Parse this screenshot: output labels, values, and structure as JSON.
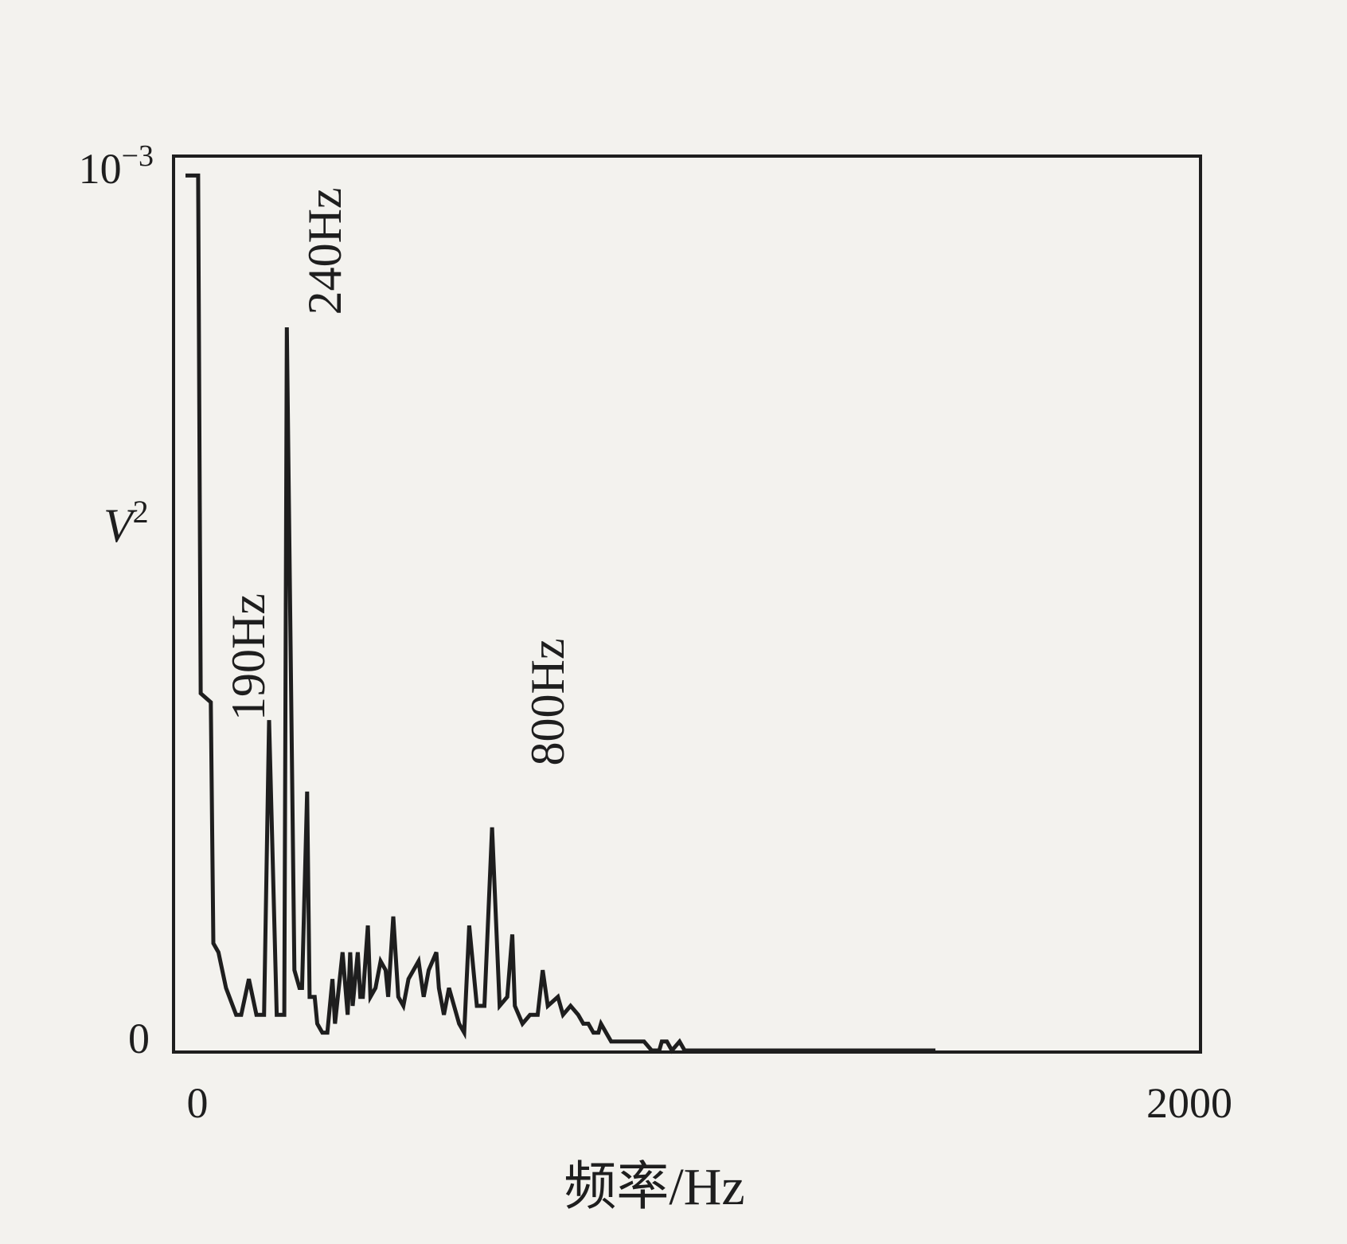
{
  "chart_data": {
    "type": "line",
    "xlabel": "频率/Hz",
    "ylabel": "V",
    "ylabel_sup": "2",
    "xlim": [
      0,
      2000
    ],
    "ylim": [
      0,
      0.001
    ],
    "x_ticks": [
      "0",
      "2000"
    ],
    "y_ticks": {
      "bottom": "0",
      "top_base": "10",
      "top_exp": "−3"
    },
    "grid": false,
    "legend": "none",
    "line_color": "#1e1e1e",
    "annotations": [
      {
        "text": "190Hz",
        "x": 190,
        "y": 0.00038
      },
      {
        "text": "240Hz",
        "x": 240,
        "y": 0.00079
      },
      {
        "text": "800Hz",
        "x": 800,
        "y": 0.00031
      }
    ],
    "series": [
      {
        "x": [
          0,
          25,
          30,
          50,
          55,
          65,
          80,
          100,
          110,
          125,
          140,
          155,
          165,
          180,
          195,
          200,
          215,
          225,
          230,
          240,
          245,
          255,
          260,
          270,
          280,
          290,
          295,
          310,
          320,
          325,
          330,
          340,
          345,
          350,
          360,
          365,
          375,
          385,
          395,
          400,
          410,
          420,
          430,
          440,
          460,
          470,
          480,
          495,
          500,
          510,
          520,
          540,
          550,
          560,
          575,
          590,
          605,
          620,
          635,
          645,
          650,
          665,
          680,
          695,
          705,
          715,
          735,
          745,
          760,
          775,
          785,
          795,
          805,
          815,
          820,
          830,
          840,
          860,
          870,
          880,
          890,
          905,
          920,
          935,
          940,
          950,
          960,
          975,
          985,
          1000,
          1015,
          1030,
          1050,
          1070,
          1080,
          1110,
          1140,
          1170,
          1195,
          1210,
          1225,
          1240,
          1255,
          1270,
          1290,
          1310,
          1340,
          1355,
          1380,
          1385,
          1400,
          1410,
          1450,
          1460,
          1480
        ],
        "y": [
          0.00098,
          0.00098,
          0.0004,
          0.00039,
          0.00012,
          0.00011,
          7e-05,
          4e-05,
          4e-05,
          8e-05,
          4e-05,
          4e-05,
          0.00037,
          4e-05,
          4e-05,
          0.00081,
          9e-05,
          7e-05,
          7e-05,
          0.00029,
          6e-05,
          6e-05,
          3e-05,
          2e-05,
          2e-05,
          8e-05,
          3e-05,
          0.00011,
          4e-05,
          0.00011,
          5e-05,
          0.00011,
          6e-05,
          6e-05,
          0.00014,
          6e-05,
          7e-05,
          0.0001,
          9e-05,
          6e-05,
          0.00015,
          6e-05,
          5e-05,
          8e-05,
          0.0001,
          6e-05,
          9e-05,
          0.00011,
          7e-05,
          4e-05,
          7e-05,
          3e-05,
          2e-05,
          0.00014,
          5e-05,
          5e-05,
          0.00025,
          5e-05,
          6e-05,
          0.00013,
          5e-05,
          3e-05,
          4e-05,
          4e-05,
          9e-05,
          5e-05,
          6e-05,
          4e-05,
          5e-05,
          4e-05,
          3e-05,
          3e-05,
          2e-05,
          2e-05,
          3e-05,
          2e-05,
          1e-05,
          1e-05,
          1e-05,
          1e-05,
          1e-05,
          1e-05,
          0.0,
          0.0,
          1e-05,
          1e-05,
          0.0,
          1e-05,
          0.0,
          0.0,
          0.0,
          0.0,
          0.0,
          0.0,
          0.0,
          0.0,
          0.0,
          0.0,
          0.0,
          0.0,
          0.0,
          0.0,
          0.0,
          0.0,
          0.0,
          0.0,
          0.0,
          0.0,
          0.0,
          0.0,
          0.0,
          0.0,
          0.0,
          0.0,
          0.0
        ]
      }
    ]
  }
}
